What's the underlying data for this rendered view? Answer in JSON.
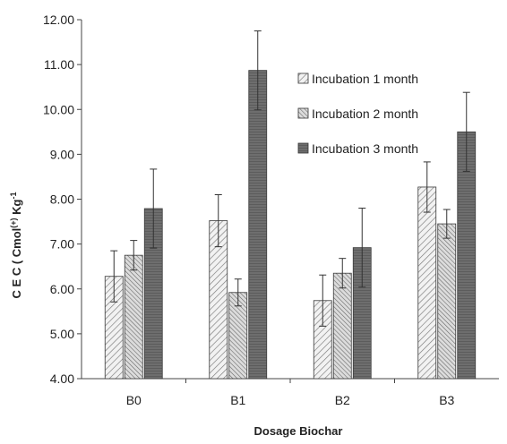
{
  "chart_data": {
    "type": "bar",
    "title": "",
    "xlabel": "Dosage Biochar",
    "ylabel_main": "C E C  ( Cmol",
    "ylabel_sup": "(+)",
    "ylabel_tail": " Kg",
    "ylabel_sup2": "-1",
    "ylim": [
      4.0,
      12.0
    ],
    "yticks": [
      "4.00",
      "5.00",
      "6.00",
      "7.00",
      "8.00",
      "9.00",
      "10.00",
      "11.00",
      "12.00"
    ],
    "categories": [
      "B0",
      "B1",
      "B2",
      "B3"
    ],
    "legend_position": "top-right",
    "grid": false,
    "series": [
      {
        "name": "Incubation 1 month",
        "values": [
          6.28,
          7.52,
          5.74,
          8.27
        ],
        "errors": [
          0.57,
          0.58,
          0.57,
          0.56
        ],
        "pattern": "light-hatch"
      },
      {
        "name": "Incubation 2 month",
        "values": [
          6.75,
          5.92,
          6.35,
          7.45
        ],
        "errors": [
          0.33,
          0.3,
          0.33,
          0.32
        ],
        "pattern": "dense-hatch"
      },
      {
        "name": "Incubation 3 month",
        "values": [
          7.79,
          10.87,
          6.92,
          9.5
        ],
        "errors": [
          0.88,
          0.88,
          0.88,
          0.88
        ],
        "pattern": "dark-fill"
      }
    ]
  }
}
